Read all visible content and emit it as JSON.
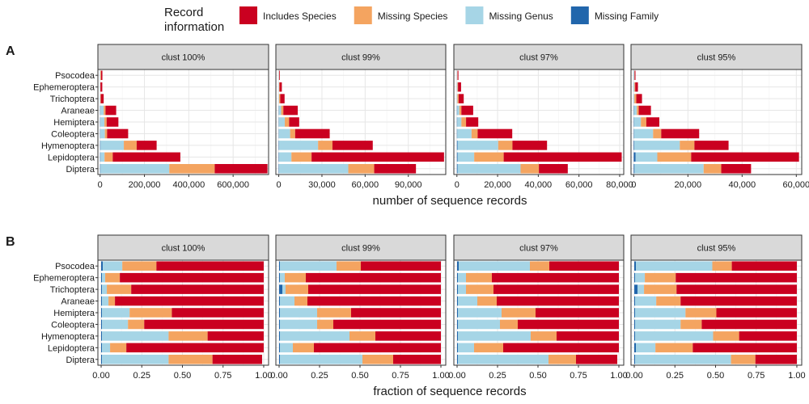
{
  "legend": {
    "title_lines": [
      "Record",
      "information"
    ],
    "items": [
      {
        "label": "Includes Species",
        "color": "#CA0020"
      },
      {
        "label": "Missing Species",
        "color": "#F4A460"
      },
      {
        "label": "Missing Genus",
        "color": "#A6D5E6"
      },
      {
        "label": "Missing Family",
        "color": "#2166AC"
      }
    ]
  },
  "chart_data": [
    {
      "type": "bar",
      "panel_tag": "A",
      "orientation": "horizontal",
      "stacked": true,
      "xlabel": "number of sequence records",
      "ylabel": "",
      "grid": true,
      "legend_position": "top",
      "categories": [
        "Psocodea",
        "Ephemeroptera",
        "Trichoptera",
        "Araneae",
        "Hemiptera",
        "Coleoptera",
        "Hymenoptera",
        "Lepidoptera",
        "Diptera"
      ],
      "stack_order": [
        "Missing Family",
        "Missing Genus",
        "Missing Species",
        "Includes Species"
      ],
      "facets": [
        {
          "title": "clust 100%",
          "xlim": [
            -10000,
            760000
          ],
          "ticks": [
            0,
            200000,
            400000,
            600000
          ],
          "tick_labels": [
            "0",
            "200,000",
            "400,000",
            "600,000"
          ],
          "series": [
            {
              "name": "Missing Family",
              "values": [
                300,
                300,
                300,
                1500,
                1500,
                1500,
                2000,
                2000,
                2000
              ]
            },
            {
              "name": "Missing Genus",
              "values": [
                1000,
                500,
                800,
                15000,
                18000,
                20000,
                105000,
                18000,
                310000
              ]
            },
            {
              "name": "Missing Species",
              "values": [
                3000,
                1000,
                2000,
                8000,
                10000,
                10000,
                58000,
                37000,
                205000
              ]
            },
            {
              "name": "Includes Species",
              "values": [
                6000,
                8000,
                13000,
                48000,
                53000,
                95000,
                90000,
                305000,
                238000
              ]
            }
          ]
        },
        {
          "title": "clust 99%",
          "xlim": [
            -2000,
            116000
          ],
          "ticks": [
            0,
            30000,
            60000,
            90000
          ],
          "tick_labels": [
            "0",
            "30,000",
            "60,000",
            "90,000"
          ],
          "series": [
            {
              "name": "Missing Family",
              "values": [
                50,
                50,
                50,
                200,
                200,
                200,
                300,
                300,
                300
              ]
            },
            {
              "name": "Missing Genus",
              "values": [
                150,
                200,
                200,
                1500,
                4000,
                7700,
                27000,
                8500,
                48000
              ]
            },
            {
              "name": "Missing Species",
              "values": [
                200,
                300,
                800,
                1500,
                3000,
                3500,
                10000,
                14000,
                18000
              ]
            },
            {
              "name": "Includes Species",
              "values": [
                400,
                1600,
                3000,
                10000,
                7000,
                24000,
                28000,
                92000,
                29000
              ]
            }
          ]
        },
        {
          "title": "clust 97%",
          "xlim": [
            -1500,
            82000
          ],
          "ticks": [
            0,
            20000,
            40000,
            60000,
            80000
          ],
          "tick_labels": [
            "0",
            "20,000",
            "40,000",
            "60,000",
            "80,000"
          ],
          "series": [
            {
              "name": "Missing Family",
              "values": [
                50,
                50,
                50,
                200,
                200,
                200,
                300,
                300,
                300
              ]
            },
            {
              "name": "Missing Genus",
              "values": [
                150,
                200,
                200,
                1000,
                2000,
                7000,
                20000,
                8200,
                31000
              ]
            },
            {
              "name": "Missing Species",
              "values": [
                150,
                300,
                600,
                1000,
                2300,
                3000,
                7000,
                14500,
                9000
              ]
            },
            {
              "name": "Includes Species",
              "values": [
                400,
                1500,
                2500,
                5800,
                6000,
                17000,
                17000,
                58000,
                14200
              ]
            }
          ]
        },
        {
          "title": "clust 95%",
          "xlim": [
            -1000,
            62000
          ],
          "ticks": [
            0,
            20000,
            40000,
            60000
          ],
          "tick_labels": [
            "0",
            "20,000",
            "40,000",
            "60,000"
          ],
          "series": [
            {
              "name": "Missing Family",
              "values": [
                50,
                50,
                50,
                150,
                150,
                150,
                200,
                700,
                300
              ]
            },
            {
              "name": "Missing Genus",
              "values": [
                200,
                200,
                200,
                1000,
                2500,
                7000,
                16800,
                8000,
                25500
              ]
            },
            {
              "name": "Missing Species",
              "values": [
                100,
                300,
                700,
                700,
                2000,
                3000,
                5400,
                12500,
                6500
              ]
            },
            {
              "name": "Includes Species",
              "values": [
                300,
                1000,
                2100,
                4500,
                4800,
                14000,
                12600,
                39800,
                11000
              ]
            }
          ]
        }
      ]
    },
    {
      "type": "bar",
      "panel_tag": "B",
      "orientation": "horizontal",
      "stacked": true,
      "xlabel": "fraction of sequence records",
      "ylabel": "",
      "grid": true,
      "categories": [
        "Psocodea",
        "Ephemeroptera",
        "Trichoptera",
        "Araneae",
        "Hemiptera",
        "Coleoptera",
        "Hymenoptera",
        "Lepidoptera",
        "Diptera"
      ],
      "stack_order": [
        "Missing Family",
        "Missing Genus",
        "Missing Species",
        "Includes Species"
      ],
      "facets": [
        {
          "title": "clust 100%",
          "xlim": [
            -0.02,
            1.03
          ],
          "ticks": [
            0,
            0.25,
            0.5,
            0.75,
            1
          ],
          "tick_labels": [
            "0.00",
            "0.25",
            "0.50",
            "0.75",
            "1.00"
          ],
          "series": [
            {
              "name": "Missing Family",
              "values": [
                0.01,
                0.005,
                0.005,
                0.005,
                0.005,
                0.005,
                0.005,
                0.005,
                0.005
              ]
            },
            {
              "name": "Missing Genus",
              "values": [
                0.12,
                0.02,
                0.03,
                0.04,
                0.17,
                0.16,
                0.41,
                0.05,
                0.41
              ]
            },
            {
              "name": "Missing Species",
              "values": [
                0.21,
                0.09,
                0.15,
                0.04,
                0.26,
                0.1,
                0.24,
                0.1,
                0.27
              ]
            },
            {
              "name": "Includes Species",
              "values": [
                0.66,
                0.885,
                0.815,
                0.915,
                0.565,
                0.735,
                0.345,
                0.845,
                0.305
              ]
            }
          ]
        },
        {
          "title": "clust 99%",
          "xlim": [
            -0.02,
            1.03
          ],
          "ticks": [
            0,
            0.25,
            0.5,
            0.75,
            1
          ],
          "tick_labels": [
            "0.00",
            "0.25",
            "0.50",
            "0.75",
            "1.00"
          ],
          "series": [
            {
              "name": "Missing Family",
              "values": [
                0.005,
                0.005,
                0.02,
                0.005,
                0.005,
                0.005,
                0.005,
                0.005,
                0.005
              ]
            },
            {
              "name": "Missing Genus",
              "values": [
                0.35,
                0.03,
                0.02,
                0.09,
                0.23,
                0.23,
                0.43,
                0.08,
                0.51
              ]
            },
            {
              "name": "Missing Species",
              "values": [
                0.15,
                0.13,
                0.14,
                0.08,
                0.21,
                0.1,
                0.16,
                0.13,
                0.19
              ]
            },
            {
              "name": "Includes Species",
              "values": [
                0.495,
                0.835,
                0.82,
                0.825,
                0.555,
                0.665,
                0.405,
                0.785,
                0.295
              ]
            }
          ]
        },
        {
          "title": "clust 97%",
          "xlim": [
            -0.02,
            1.03
          ],
          "ticks": [
            0,
            0.25,
            0.5,
            0.75,
            1
          ],
          "tick_labels": [
            "0.00",
            "0.25",
            "0.50",
            "0.75",
            "1.00"
          ],
          "series": [
            {
              "name": "Missing Family",
              "values": [
                0.01,
                0.005,
                0.005,
                0.005,
                0.005,
                0.005,
                0.005,
                0.005,
                0.005
              ]
            },
            {
              "name": "Missing Genus",
              "values": [
                0.44,
                0.05,
                0.05,
                0.12,
                0.27,
                0.26,
                0.45,
                0.1,
                0.56
              ]
            },
            {
              "name": "Missing Species",
              "values": [
                0.12,
                0.16,
                0.17,
                0.12,
                0.21,
                0.11,
                0.16,
                0.18,
                0.17
              ]
            },
            {
              "name": "Includes Species",
              "values": [
                0.43,
                0.785,
                0.775,
                0.755,
                0.515,
                0.625,
                0.385,
                0.715,
                0.255
              ]
            }
          ]
        },
        {
          "title": "clust 95%",
          "xlim": [
            -0.02,
            1.03
          ],
          "ticks": [
            0,
            0.25,
            0.5,
            0.75,
            1
          ],
          "tick_labels": [
            "0.00",
            "0.25",
            "0.50",
            "0.75",
            "1.00"
          ],
          "series": [
            {
              "name": "Missing Family",
              "values": [
                0.01,
                0.005,
                0.02,
                0.005,
                0.005,
                0.005,
                0.005,
                0.01,
                0.005
              ]
            },
            {
              "name": "Missing Genus",
              "values": [
                0.47,
                0.06,
                0.04,
                0.13,
                0.31,
                0.28,
                0.48,
                0.12,
                0.59
              ]
            },
            {
              "name": "Missing Species",
              "values": [
                0.12,
                0.19,
                0.2,
                0.15,
                0.19,
                0.13,
                0.16,
                0.23,
                0.15
              ]
            },
            {
              "name": "Includes Species",
              "values": [
                0.4,
                0.745,
                0.74,
                0.715,
                0.495,
                0.585,
                0.355,
                0.64,
                0.255
              ]
            }
          ]
        }
      ]
    }
  ]
}
